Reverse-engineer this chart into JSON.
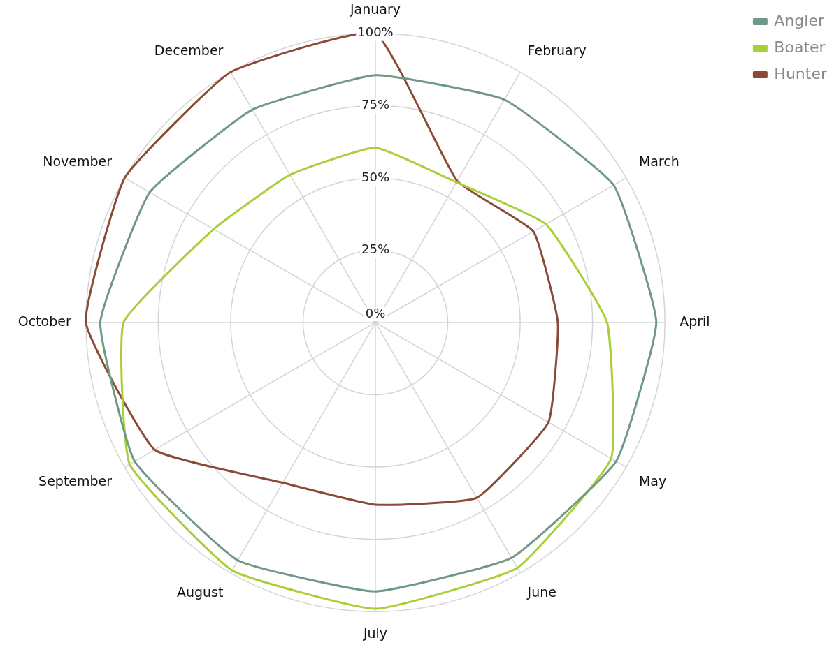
{
  "chart_data": {
    "type": "radar",
    "categories": [
      "January",
      "February",
      "March",
      "April",
      "May",
      "June",
      "July",
      "August",
      "September",
      "October",
      "November",
      "December"
    ],
    "series": [
      {
        "name": "Angler",
        "color": "#6f9887",
        "values": [
          85.5,
          89,
          95,
          97,
          96,
          94,
          93,
          95,
          96,
          95,
          90,
          85
        ]
      },
      {
        "name": "Boater",
        "color": "#a8cf3a",
        "values": [
          60.5,
          56,
          68,
          80,
          94,
          98,
          99,
          99,
          98,
          87,
          64.5,
          59
        ]
      },
      {
        "name": "Hunter",
        "color": "#8b4a35",
        "values": [
          100,
          56.5,
          63,
          63,
          69,
          70,
          63,
          64,
          88,
          100,
          100,
          100
        ]
      }
    ],
    "ylim": [
      0,
      100
    ],
    "yticks": [
      {
        "value": 0,
        "label": "0%"
      },
      {
        "value": 25,
        "label": "25%"
      },
      {
        "value": 50,
        "label": "50%"
      },
      {
        "value": 75,
        "label": "75%"
      },
      {
        "value": 100,
        "label": "100%"
      }
    ],
    "grid": true,
    "legend": "top right",
    "marker": "none"
  }
}
